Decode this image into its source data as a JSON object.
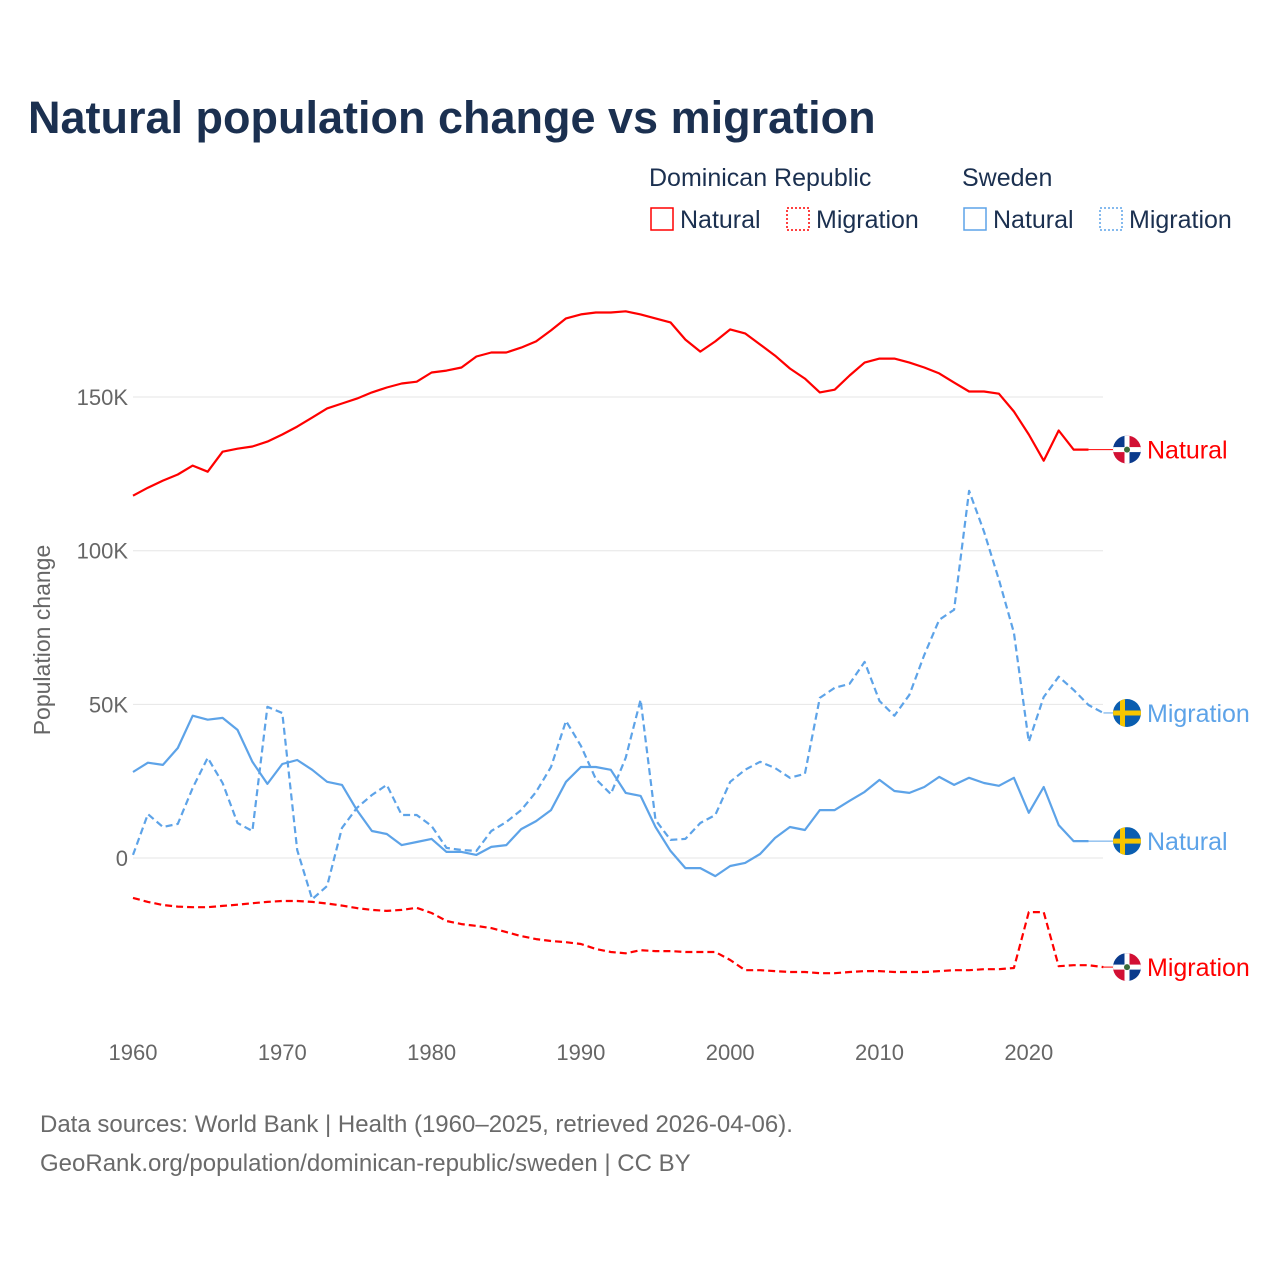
{
  "title": "Natural population change vs migration",
  "legend": {
    "groups": [
      {
        "name": "Dominican Republic",
        "items": [
          "Natural",
          "Migration"
        ],
        "color": "#ff0000"
      },
      {
        "name": "Sweden",
        "items": [
          "Natural",
          "Migration"
        ],
        "color": "#5da3e8"
      }
    ]
  },
  "footer": {
    "line1": "Data sources: World Bank | Health (1960–2025, retrieved 2026-04-06).",
    "line2": "GeoRank.org/population/dominican-republic/sweden | CC BY"
  },
  "chart_data": {
    "type": "line",
    "title": "Natural population change vs migration",
    "xlabel": "",
    "ylabel": "Population change",
    "xlim": [
      1960,
      2025
    ],
    "ylim": [
      -50000,
      185000
    ],
    "x_ticks": [
      1960,
      1970,
      1980,
      1990,
      2000,
      2010,
      2020
    ],
    "x_tick_labels": [
      "1960",
      "1970",
      "1980",
      "1990",
      "2000",
      "2010",
      "2020"
    ],
    "y_ticks": [
      0,
      50000,
      100000,
      150000
    ],
    "y_tick_labels": [
      "0",
      "50K",
      "100K",
      "150K"
    ],
    "grid": true,
    "legend_position": "top-right",
    "series": [
      {
        "name": "Dominican Republic Natural",
        "end_label": "Natural",
        "country": "Dominican Republic",
        "color": "#ff0000",
        "dash": "solid",
        "x_start": 1960,
        "values": [
          117900,
          120500,
          122800,
          124800,
          127700,
          125700,
          132200,
          133200,
          133900,
          135500,
          137800,
          140400,
          143300,
          146300,
          147900,
          149500,
          151500,
          153100,
          154400,
          155000,
          158000,
          158600,
          159600,
          163200,
          164500,
          164500,
          166100,
          168100,
          171700,
          175600,
          176900,
          177500,
          177500,
          177900,
          176900,
          175600,
          174300,
          168700,
          164800,
          168100,
          172000,
          170700,
          167100,
          163500,
          159300,
          156000,
          151500,
          152400,
          157000,
          161200,
          162500,
          162500,
          161200,
          159600,
          157700,
          154700,
          151800,
          151800,
          151100,
          145300,
          137800,
          129300,
          139100,
          132900,
          132900
        ]
      },
      {
        "name": "Dominican Republic Migration",
        "end_label": "Migration",
        "country": "Dominican Republic",
        "color": "#ff0000",
        "dash": "dashed",
        "x_start": 1960,
        "values": [
          -13000,
          -14300,
          -15300,
          -15800,
          -16000,
          -16000,
          -15600,
          -15200,
          -14700,
          -14300,
          -14000,
          -14000,
          -14300,
          -14800,
          -15500,
          -16300,
          -16900,
          -17200,
          -16900,
          -16200,
          -17900,
          -20500,
          -21500,
          -22100,
          -22800,
          -24100,
          -25400,
          -26400,
          -27000,
          -27400,
          -28000,
          -29600,
          -30600,
          -31000,
          -30000,
          -30300,
          -30300,
          -30600,
          -30600,
          -30600,
          -33200,
          -36500,
          -36500,
          -36800,
          -37100,
          -37100,
          -37500,
          -37500,
          -37100,
          -36800,
          -36800,
          -37100,
          -37100,
          -37100,
          -36800,
          -36500,
          -36500,
          -36200,
          -36200,
          -35800,
          -17600,
          -17600,
          -35200,
          -34900,
          -34900,
          -35500
        ]
      },
      {
        "name": "Sweden Natural",
        "end_label": "Natural",
        "country": "Sweden",
        "color": "#5da3e8",
        "dash": "solid",
        "x_start": 1960,
        "values": [
          28000,
          31000,
          30300,
          35800,
          46300,
          45000,
          45600,
          41700,
          31300,
          24100,
          30600,
          31900,
          28700,
          24800,
          23800,
          15600,
          8800,
          7800,
          4200,
          5200,
          6200,
          2000,
          2000,
          1000,
          3600,
          4200,
          9400,
          12000,
          15600,
          24800,
          29600,
          29600,
          28700,
          21200,
          20200,
          10100,
          2300,
          -3300,
          -3300,
          -5900,
          -2600,
          -1600,
          1300,
          6500,
          10100,
          9100,
          15600,
          15600,
          18600,
          21500,
          25400,
          21800,
          21200,
          23100,
          26400,
          23800,
          26100,
          24400,
          23500,
          26100,
          14700,
          23100,
          10700,
          5500,
          5500
        ]
      },
      {
        "name": "Sweden Migration",
        "end_label": "Migration",
        "country": "Sweden",
        "color": "#5da3e8",
        "dash": "dashed",
        "x_start": 1960,
        "values": [
          1000,
          14300,
          10100,
          11100,
          22800,
          32600,
          24400,
          11400,
          8800,
          49200,
          47200,
          2600,
          -13400,
          -9100,
          9800,
          16300,
          20500,
          23800,
          14000,
          14000,
          10400,
          3300,
          2600,
          2300,
          8800,
          11700,
          15600,
          21500,
          29600,
          44600,
          36500,
          25700,
          20800,
          32600,
          51500,
          12400,
          5900,
          6200,
          11400,
          14000,
          24800,
          28700,
          31300,
          29300,
          26100,
          27400,
          52100,
          55400,
          56700,
          63800,
          51100,
          46300,
          53100,
          66100,
          77500,
          80800,
          119500,
          106200,
          90600,
          73300,
          37800,
          52400,
          59000,
          54700,
          49800,
          47200
        ]
      }
    ]
  }
}
